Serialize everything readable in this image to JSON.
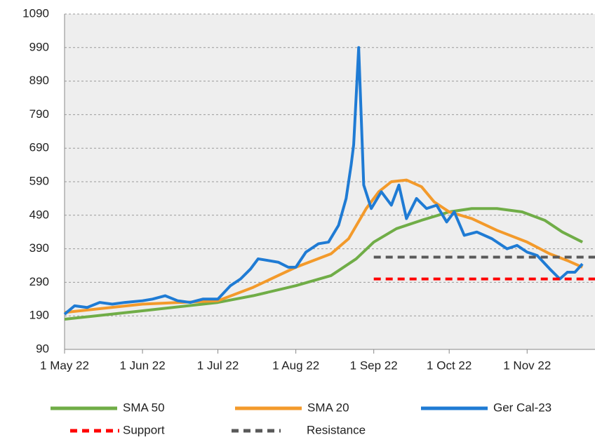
{
  "chart_data": {
    "type": "line",
    "ylim": [
      90,
      1090
    ],
    "yticks": [
      90,
      190,
      290,
      390,
      490,
      590,
      690,
      790,
      890,
      990,
      1090
    ],
    "grid": true,
    "xlim": [
      "2022-05-01",
      "2022-11-28"
    ],
    "xticks": [
      {
        "value": "2022-05-01",
        "label": "1 May 22"
      },
      {
        "value": "2022-06-01",
        "label": "1 Jun 22"
      },
      {
        "value": "2022-07-01",
        "label": "1 Jul 22"
      },
      {
        "value": "2022-08-01",
        "label": "1 Aug 22"
      },
      {
        "value": "2022-09-01",
        "label": "1 Sep 22"
      },
      {
        "value": "2022-10-01",
        "label": "1 Oct 22"
      },
      {
        "value": "2022-11-01",
        "label": "1 Nov 22"
      }
    ],
    "series": [
      {
        "name": "SMA 50",
        "color": "#70ad47",
        "dash": false,
        "x": [
          "2022-05-01",
          "2022-06-01",
          "2022-07-01",
          "2022-07-15",
          "2022-08-01",
          "2022-08-15",
          "2022-08-25",
          "2022-09-01",
          "2022-09-10",
          "2022-09-20",
          "2022-10-01",
          "2022-10-10",
          "2022-10-20",
          "2022-10-30",
          "2022-11-08",
          "2022-11-15",
          "2022-11-23"
        ],
        "values": [
          180,
          205,
          230,
          250,
          280,
          310,
          360,
          410,
          450,
          475,
          500,
          510,
          510,
          500,
          475,
          440,
          410
        ]
      },
      {
        "name": "SMA 20",
        "color": "#f39a2b",
        "dash": false,
        "x": [
          "2022-05-01",
          "2022-06-01",
          "2022-07-01",
          "2022-07-15",
          "2022-08-01",
          "2022-08-15",
          "2022-08-22",
          "2022-08-29",
          "2022-09-03",
          "2022-09-08",
          "2022-09-14",
          "2022-09-20",
          "2022-09-25",
          "2022-10-01",
          "2022-10-10",
          "2022-10-20",
          "2022-11-01",
          "2022-11-10",
          "2022-11-17",
          "2022-11-23"
        ],
        "values": [
          200,
          225,
          235,
          275,
          335,
          375,
          420,
          510,
          560,
          590,
          595,
          575,
          530,
          500,
          480,
          445,
          410,
          375,
          355,
          335
        ]
      },
      {
        "name": "Ger Cal-23",
        "color": "#1f7bd4",
        "dash": false,
        "x": [
          "2022-05-01",
          "2022-05-05",
          "2022-05-10",
          "2022-05-15",
          "2022-05-20",
          "2022-05-25",
          "2022-06-01",
          "2022-06-05",
          "2022-06-10",
          "2022-06-15",
          "2022-06-20",
          "2022-06-25",
          "2022-07-01",
          "2022-07-06",
          "2022-07-10",
          "2022-07-14",
          "2022-07-17",
          "2022-07-21",
          "2022-07-25",
          "2022-07-29",
          "2022-08-01",
          "2022-08-05",
          "2022-08-10",
          "2022-08-14",
          "2022-08-18",
          "2022-08-21",
          "2022-08-23",
          "2022-08-24",
          "2022-08-26",
          "2022-08-28",
          "2022-08-31",
          "2022-09-04",
          "2022-09-08",
          "2022-09-11",
          "2022-09-14",
          "2022-09-18",
          "2022-09-22",
          "2022-09-26",
          "2022-09-30",
          "2022-10-03",
          "2022-10-07",
          "2022-10-12",
          "2022-10-18",
          "2022-10-24",
          "2022-10-28",
          "2022-11-01",
          "2022-11-05",
          "2022-11-10",
          "2022-11-14",
          "2022-11-17",
          "2022-11-20",
          "2022-11-23"
        ],
        "values": [
          195,
          220,
          215,
          230,
          225,
          230,
          235,
          240,
          250,
          235,
          230,
          240,
          240,
          280,
          300,
          330,
          360,
          355,
          350,
          335,
          335,
          380,
          405,
          410,
          460,
          540,
          640,
          700,
          990,
          580,
          510,
          560,
          520,
          580,
          480,
          540,
          510,
          520,
          470,
          500,
          430,
          440,
          420,
          390,
          400,
          380,
          370,
          330,
          300,
          320,
          320,
          345
        ]
      },
      {
        "name": "Support",
        "color": "#ff0000",
        "dash": true,
        "x": [
          "2022-09-01",
          "2022-11-28"
        ],
        "values": [
          300,
          300
        ]
      },
      {
        "name": "Resistance",
        "color": "#595959",
        "dash": true,
        "x": [
          "2022-09-01",
          "2022-11-28"
        ],
        "values": [
          365,
          365
        ]
      }
    ]
  }
}
